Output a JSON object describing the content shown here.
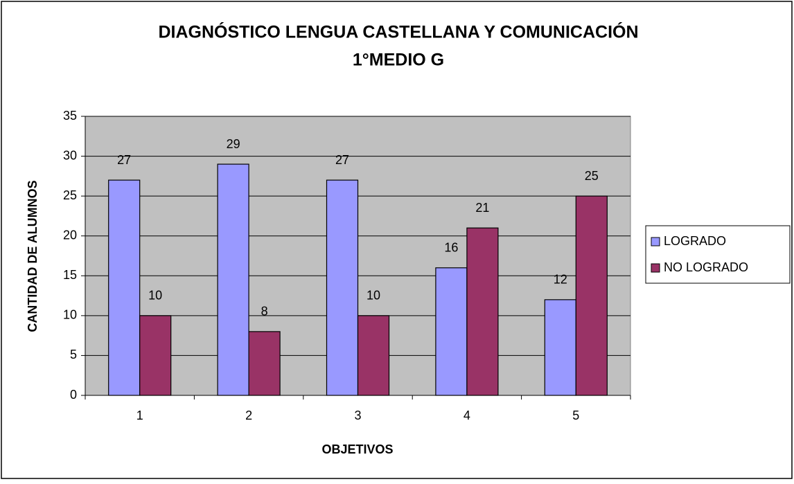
{
  "chart_data": {
    "type": "bar",
    "title": [
      "DIAGNÓSTICO LENGUA CASTELLANA Y COMUNICACIÓN",
      "1°MEDIO G"
    ],
    "x_label": "OBJETIVOS",
    "y_label": "CANTIDAD DE ALUMNOS",
    "categories": [
      "1",
      "2",
      "3",
      "4",
      "5"
    ],
    "series": [
      {
        "name": "LOGRADO",
        "color": "#9999ff",
        "values": [
          27,
          29,
          27,
          16,
          12
        ]
      },
      {
        "name": "NO LOGRADO",
        "color": "#993366",
        "values": [
          10,
          8,
          10,
          21,
          25
        ]
      }
    ],
    "ylim": [
      0,
      35
    ],
    "yticks": [
      0,
      5,
      10,
      15,
      20,
      25,
      30,
      35
    ],
    "grid": true,
    "legend": "right"
  }
}
